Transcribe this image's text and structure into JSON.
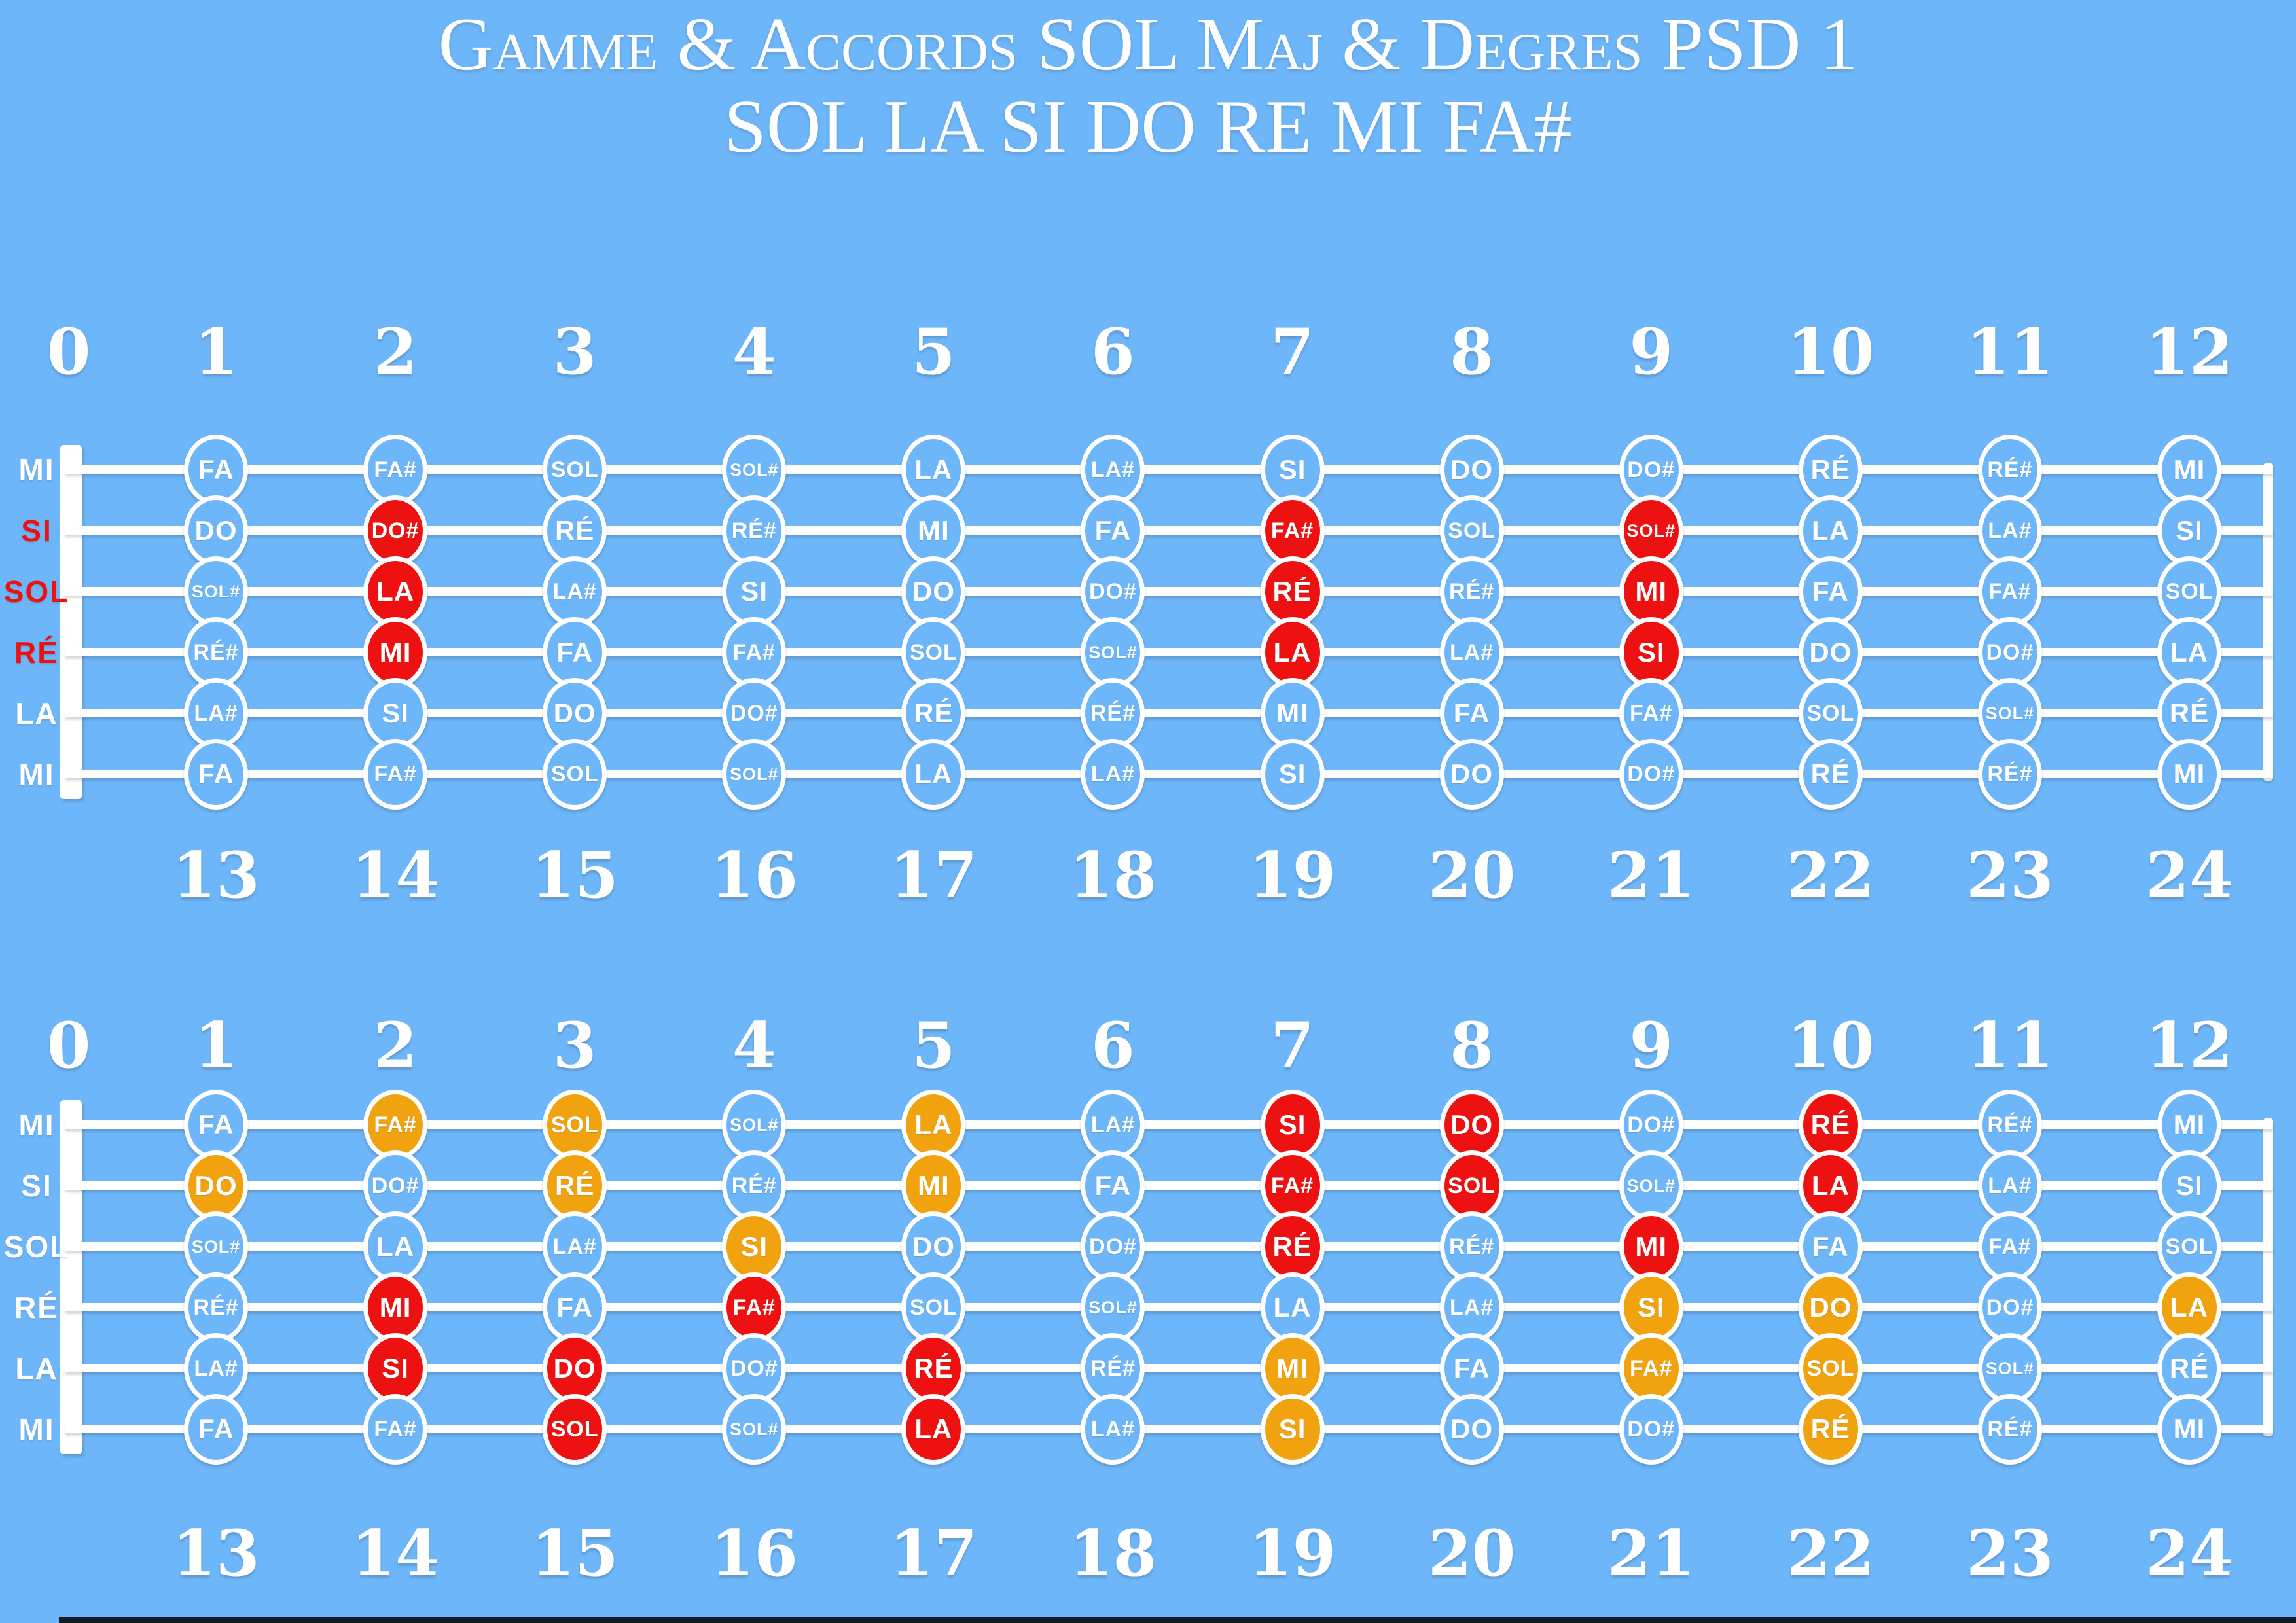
{
  "title": {
    "line1": "Gamme & Accords SOL Maj & Degres PSD 1",
    "line2": "SOL LA SI DO RE MI FA#"
  },
  "colors": {
    "background": "#6db6f9",
    "note_red": "#ee1111",
    "note_orange": "#f0a30f",
    "label_red": "#ee1111",
    "white": "#ffffff",
    "bottom_bar_dark": "#101b26"
  },
  "fret_numbers_top": [
    "0",
    "1",
    "2",
    "3",
    "4",
    "5",
    "6",
    "7",
    "8",
    "9",
    "10",
    "11",
    "12"
  ],
  "fret_numbers_bottom": [
    "13",
    "14",
    "15",
    "16",
    "17",
    "18",
    "19",
    "20",
    "21",
    "22",
    "23",
    "24"
  ],
  "fretboards": [
    {
      "name": "gamme-sol-majeur",
      "strings": [
        {
          "label": "MI",
          "label_color": "white",
          "notes": [
            {
              "t": "FA",
              "c": "plain"
            },
            {
              "t": "FA#",
              "c": "plain"
            },
            {
              "t": "SOL",
              "c": "plain"
            },
            {
              "t": "SOL#",
              "c": "plain"
            },
            {
              "t": "LA",
              "c": "plain"
            },
            {
              "t": "LA#",
              "c": "plain"
            },
            {
              "t": "SI",
              "c": "plain"
            },
            {
              "t": "DO",
              "c": "plain"
            },
            {
              "t": "DO#",
              "c": "plain"
            },
            {
              "t": "RÉ",
              "c": "plain"
            },
            {
              "t": "RÉ#",
              "c": "plain"
            },
            {
              "t": "MI",
              "c": "plain"
            }
          ]
        },
        {
          "label": "SI",
          "label_color": "red",
          "notes": [
            {
              "t": "DO",
              "c": "plain"
            },
            {
              "t": "DO#",
              "c": "red"
            },
            {
              "t": "RÉ",
              "c": "plain"
            },
            {
              "t": "RÉ#",
              "c": "plain"
            },
            {
              "t": "MI",
              "c": "plain"
            },
            {
              "t": "FA",
              "c": "plain"
            },
            {
              "t": "FA#",
              "c": "red"
            },
            {
              "t": "SOL",
              "c": "plain"
            },
            {
              "t": "SOL#",
              "c": "red"
            },
            {
              "t": "LA",
              "c": "plain"
            },
            {
              "t": "LA#",
              "c": "plain"
            },
            {
              "t": "SI",
              "c": "plain"
            }
          ]
        },
        {
          "label": "SOL",
          "label_color": "red",
          "notes": [
            {
              "t": "SOL#",
              "c": "plain"
            },
            {
              "t": "LA",
              "c": "red"
            },
            {
              "t": "LA#",
              "c": "plain"
            },
            {
              "t": "SI",
              "c": "plain"
            },
            {
              "t": "DO",
              "c": "plain"
            },
            {
              "t": "DO#",
              "c": "plain"
            },
            {
              "t": "RÉ",
              "c": "red"
            },
            {
              "t": "RÉ#",
              "c": "plain"
            },
            {
              "t": "MI",
              "c": "red"
            },
            {
              "t": "FA",
              "c": "plain"
            },
            {
              "t": "FA#",
              "c": "plain"
            },
            {
              "t": "SOL",
              "c": "plain"
            }
          ]
        },
        {
          "label": "RÉ",
          "label_color": "red",
          "notes": [
            {
              "t": "RÉ#",
              "c": "plain"
            },
            {
              "t": "MI",
              "c": "red"
            },
            {
              "t": "FA",
              "c": "plain"
            },
            {
              "t": "FA#",
              "c": "plain"
            },
            {
              "t": "SOL",
              "c": "plain"
            },
            {
              "t": "SOL#",
              "c": "plain"
            },
            {
              "t": "LA",
              "c": "red"
            },
            {
              "t": "LA#",
              "c": "plain"
            },
            {
              "t": "SI",
              "c": "red"
            },
            {
              "t": "DO",
              "c": "plain"
            },
            {
              "t": "DO#",
              "c": "plain"
            },
            {
              "t": "LA",
              "c": "plain"
            }
          ]
        },
        {
          "label": "LA",
          "label_color": "white",
          "notes": [
            {
              "t": "LA#",
              "c": "plain"
            },
            {
              "t": "SI",
              "c": "plain"
            },
            {
              "t": "DO",
              "c": "plain"
            },
            {
              "t": "DO#",
              "c": "plain"
            },
            {
              "t": "RÉ",
              "c": "plain"
            },
            {
              "t": "RÉ#",
              "c": "plain"
            },
            {
              "t": "MI",
              "c": "plain"
            },
            {
              "t": "FA",
              "c": "plain"
            },
            {
              "t": "FA#",
              "c": "plain"
            },
            {
              "t": "SOL",
              "c": "plain"
            },
            {
              "t": "SOL#",
              "c": "plain"
            },
            {
              "t": "RÉ",
              "c": "plain"
            }
          ]
        },
        {
          "label": "MI",
          "label_color": "white",
          "notes": [
            {
              "t": "FA",
              "c": "plain"
            },
            {
              "t": "FA#",
              "c": "plain"
            },
            {
              "t": "SOL",
              "c": "plain"
            },
            {
              "t": "SOL#",
              "c": "plain"
            },
            {
              "t": "LA",
              "c": "plain"
            },
            {
              "t": "LA#",
              "c": "plain"
            },
            {
              "t": "SI",
              "c": "plain"
            },
            {
              "t": "DO",
              "c": "plain"
            },
            {
              "t": "DO#",
              "c": "plain"
            },
            {
              "t": "RÉ",
              "c": "plain"
            },
            {
              "t": "RÉ#",
              "c": "plain"
            },
            {
              "t": "MI",
              "c": "plain"
            }
          ]
        }
      ]
    },
    {
      "name": "accords-degres",
      "strings": [
        {
          "label": "MI",
          "label_color": "white",
          "notes": [
            {
              "t": "FA",
              "c": "plain"
            },
            {
              "t": "FA#",
              "c": "orange"
            },
            {
              "t": "SOL",
              "c": "orange"
            },
            {
              "t": "SOL#",
              "c": "plain"
            },
            {
              "t": "LA",
              "c": "orange"
            },
            {
              "t": "LA#",
              "c": "plain"
            },
            {
              "t": "SI",
              "c": "red"
            },
            {
              "t": "DO",
              "c": "red"
            },
            {
              "t": "DO#",
              "c": "plain"
            },
            {
              "t": "RÉ",
              "c": "red"
            },
            {
              "t": "RÉ#",
              "c": "plain"
            },
            {
              "t": "MI",
              "c": "plain"
            }
          ]
        },
        {
          "label": "SI",
          "label_color": "white",
          "notes": [
            {
              "t": "DO",
              "c": "orange"
            },
            {
              "t": "DO#",
              "c": "plain"
            },
            {
              "t": "RÉ",
              "c": "orange"
            },
            {
              "t": "RÉ#",
              "c": "plain"
            },
            {
              "t": "MI",
              "c": "orange"
            },
            {
              "t": "FA",
              "c": "plain"
            },
            {
              "t": "FA#",
              "c": "red"
            },
            {
              "t": "SOL",
              "c": "red"
            },
            {
              "t": "SOL#",
              "c": "plain"
            },
            {
              "t": "LA",
              "c": "red"
            },
            {
              "t": "LA#",
              "c": "plain"
            },
            {
              "t": "SI",
              "c": "plain"
            }
          ]
        },
        {
          "label": "SOL",
          "label_color": "white",
          "notes": [
            {
              "t": "SOL#",
              "c": "plain"
            },
            {
              "t": "LA",
              "c": "plain"
            },
            {
              "t": "LA#",
              "c": "plain"
            },
            {
              "t": "SI",
              "c": "orange"
            },
            {
              "t": "DO",
              "c": "plain"
            },
            {
              "t": "DO#",
              "c": "plain"
            },
            {
              "t": "RÉ",
              "c": "red"
            },
            {
              "t": "RÉ#",
              "c": "plain"
            },
            {
              "t": "MI",
              "c": "red"
            },
            {
              "t": "FA",
              "c": "plain"
            },
            {
              "t": "FA#",
              "c": "plain"
            },
            {
              "t": "SOL",
              "c": "plain"
            }
          ]
        },
        {
          "label": "RÉ",
          "label_color": "white",
          "notes": [
            {
              "t": "RÉ#",
              "c": "plain"
            },
            {
              "t": "MI",
              "c": "red"
            },
            {
              "t": "FA",
              "c": "plain"
            },
            {
              "t": "FA#",
              "c": "red"
            },
            {
              "t": "SOL",
              "c": "plain"
            },
            {
              "t": "SOL#",
              "c": "plain"
            },
            {
              "t": "LA",
              "c": "plain"
            },
            {
              "t": "LA#",
              "c": "plain"
            },
            {
              "t": "SI",
              "c": "orange"
            },
            {
              "t": "DO",
              "c": "orange"
            },
            {
              "t": "DO#",
              "c": "plain"
            },
            {
              "t": "LA",
              "c": "orange"
            }
          ]
        },
        {
          "label": "LA",
          "label_color": "white",
          "notes": [
            {
              "t": "LA#",
              "c": "plain"
            },
            {
              "t": "SI",
              "c": "red"
            },
            {
              "t": "DO",
              "c": "red"
            },
            {
              "t": "DO#",
              "c": "plain"
            },
            {
              "t": "RÉ",
              "c": "red"
            },
            {
              "t": "RÉ#",
              "c": "plain"
            },
            {
              "t": "MI",
              "c": "orange"
            },
            {
              "t": "FA",
              "c": "plain"
            },
            {
              "t": "FA#",
              "c": "orange"
            },
            {
              "t": "SOL",
              "c": "orange"
            },
            {
              "t": "SOL#",
              "c": "plain"
            },
            {
              "t": "RÉ",
              "c": "plain"
            }
          ]
        },
        {
          "label": "MI",
          "label_color": "white",
          "notes": [
            {
              "t": "FA",
              "c": "plain"
            },
            {
              "t": "FA#",
              "c": "plain"
            },
            {
              "t": "SOL",
              "c": "red"
            },
            {
              "t": "SOL#",
              "c": "plain"
            },
            {
              "t": "LA",
              "c": "red"
            },
            {
              "t": "LA#",
              "c": "plain"
            },
            {
              "t": "SI",
              "c": "orange"
            },
            {
              "t": "DO",
              "c": "plain"
            },
            {
              "t": "DO#",
              "c": "plain"
            },
            {
              "t": "RÉ",
              "c": "orange"
            },
            {
              "t": "RÉ#",
              "c": "plain"
            },
            {
              "t": "MI",
              "c": "plain"
            }
          ]
        }
      ]
    }
  ]
}
